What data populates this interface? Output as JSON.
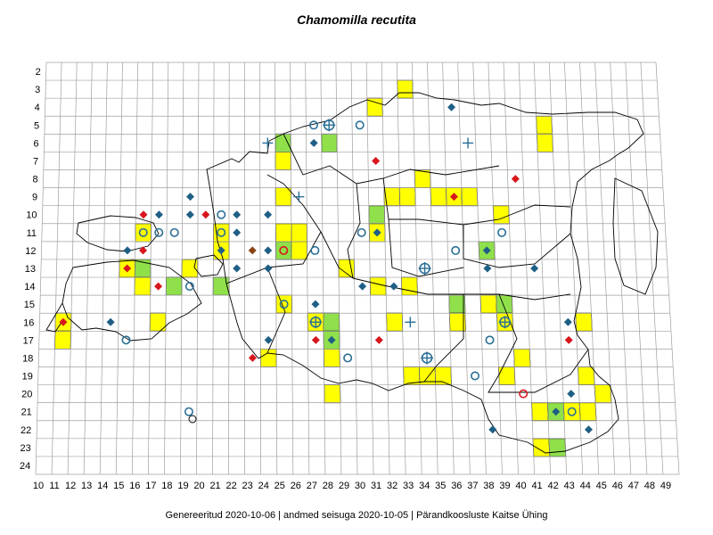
{
  "title": "Chamomilla recutita",
  "footer": {
    "generated": "Genereeritud 2020-10-06",
    "data_state": "andmed seisuga 2020-10-05",
    "organization": "Pärandkoosluste Kaitse Ühing",
    "separator": "|"
  },
  "grid": {
    "cols": [
      10,
      11,
      12,
      13,
      14,
      15,
      16,
      17,
      18,
      19,
      20,
      21,
      22,
      23,
      24,
      25,
      26,
      27,
      28,
      29,
      30,
      31,
      32,
      33,
      34,
      35,
      36,
      37,
      38,
      39,
      40,
      41,
      42,
      43,
      44,
      45,
      46,
      47,
      48,
      49
    ],
    "rows": [
      2,
      3,
      4,
      5,
      6,
      7,
      8,
      9,
      10,
      11,
      12,
      13,
      14,
      15,
      16,
      17,
      18,
      19,
      20,
      21,
      22,
      23,
      24
    ]
  },
  "colors": {
    "yellow_cell": "#ffff00",
    "green_cell": "#8fe04a",
    "diamond_blue": "#1f5f86",
    "diamond_red": "#d8161c",
    "diamond_brown": "#8b4513",
    "circle_blue": "#2a6f97",
    "circle_red": "#d8161c",
    "grid_line": "#a0a0a0",
    "outline": "#000000"
  },
  "cells": [
    {
      "c": 33,
      "r": 3,
      "fill": "yellow"
    },
    {
      "c": 31,
      "r": 4,
      "fill": "yellow"
    },
    {
      "c": 42,
      "r": 5,
      "fill": "yellow"
    },
    {
      "c": 42,
      "r": 6,
      "fill": "yellow"
    },
    {
      "c": 25,
      "r": 6,
      "fill": "green"
    },
    {
      "c": 28,
      "r": 6,
      "fill": "green"
    },
    {
      "c": 25,
      "r": 7,
      "fill": "yellow"
    },
    {
      "c": 34,
      "r": 8,
      "fill": "yellow"
    },
    {
      "c": 25,
      "r": 9,
      "fill": "yellow"
    },
    {
      "c": 32,
      "r": 9,
      "fill": "yellow"
    },
    {
      "c": 33,
      "r": 9,
      "fill": "yellow"
    },
    {
      "c": 35,
      "r": 9,
      "fill": "yellow"
    },
    {
      "c": 36,
      "r": 9,
      "fill": "yellow"
    },
    {
      "c": 37,
      "r": 9,
      "fill": "yellow"
    },
    {
      "c": 31,
      "r": 10,
      "fill": "green"
    },
    {
      "c": 39,
      "r": 10,
      "fill": "yellow"
    },
    {
      "c": 16,
      "r": 11,
      "fill": "yellow"
    },
    {
      "c": 21,
      "r": 11,
      "fill": "yellow"
    },
    {
      "c": 25,
      "r": 11,
      "fill": "yellow"
    },
    {
      "c": 26,
      "r": 11,
      "fill": "yellow"
    },
    {
      "c": 31,
      "r": 11,
      "fill": "yellow"
    },
    {
      "c": 21,
      "r": 12,
      "fill": "yellow"
    },
    {
      "c": 25,
      "r": 12,
      "fill": "green"
    },
    {
      "c": 26,
      "r": 12,
      "fill": "yellow"
    },
    {
      "c": 38,
      "r": 12,
      "fill": "green"
    },
    {
      "c": 15,
      "r": 13,
      "fill": "yellow"
    },
    {
      "c": 16,
      "r": 13,
      "fill": "green"
    },
    {
      "c": 19,
      "r": 13,
      "fill": "yellow"
    },
    {
      "c": 29,
      "r": 13,
      "fill": "yellow"
    },
    {
      "c": 16,
      "r": 14,
      "fill": "yellow"
    },
    {
      "c": 18,
      "r": 14,
      "fill": "green"
    },
    {
      "c": 21,
      "r": 14,
      "fill": "green"
    },
    {
      "c": 31,
      "r": 14,
      "fill": "yellow"
    },
    {
      "c": 33,
      "r": 14,
      "fill": "yellow"
    },
    {
      "c": 25,
      "r": 15,
      "fill": "yellow"
    },
    {
      "c": 36,
      "r": 15,
      "fill": "green"
    },
    {
      "c": 38,
      "r": 15,
      "fill": "yellow"
    },
    {
      "c": 39,
      "r": 15,
      "fill": "green"
    },
    {
      "c": 11,
      "r": 16,
      "fill": "yellow"
    },
    {
      "c": 17,
      "r": 16,
      "fill": "yellow"
    },
    {
      "c": 27,
      "r": 16,
      "fill": "yellow"
    },
    {
      "c": 28,
      "r": 16,
      "fill": "green"
    },
    {
      "c": 32,
      "r": 16,
      "fill": "yellow"
    },
    {
      "c": 36,
      "r": 16,
      "fill": "yellow"
    },
    {
      "c": 39,
      "r": 16,
      "fill": "yellow"
    },
    {
      "c": 44,
      "r": 16,
      "fill": "yellow"
    },
    {
      "c": 11,
      "r": 17,
      "fill": "yellow"
    },
    {
      "c": 28,
      "r": 17,
      "fill": "green"
    },
    {
      "c": 24,
      "r": 18,
      "fill": "yellow"
    },
    {
      "c": 28,
      "r": 18,
      "fill": "yellow"
    },
    {
      "c": 40,
      "r": 18,
      "fill": "yellow"
    },
    {
      "c": 33,
      "r": 19,
      "fill": "yellow"
    },
    {
      "c": 34,
      "r": 19,
      "fill": "yellow"
    },
    {
      "c": 35,
      "r": 19,
      "fill": "yellow"
    },
    {
      "c": 39,
      "r": 19,
      "fill": "yellow"
    },
    {
      "c": 44,
      "r": 19,
      "fill": "yellow"
    },
    {
      "c": 28,
      "r": 20,
      "fill": "yellow"
    },
    {
      "c": 45,
      "r": 20,
      "fill": "yellow"
    },
    {
      "c": 41,
      "r": 21,
      "fill": "yellow"
    },
    {
      "c": 42,
      "r": 21,
      "fill": "green"
    },
    {
      "c": 43,
      "r": 21,
      "fill": "yellow"
    },
    {
      "c": 44,
      "r": 21,
      "fill": "yellow"
    },
    {
      "c": 41,
      "r": 23,
      "fill": "yellow"
    },
    {
      "c": 42,
      "r": 23,
      "fill": "green"
    }
  ],
  "markers": [
    {
      "c": 36,
      "r": 4,
      "type": "diamond",
      "color": "blue"
    },
    {
      "c": 27,
      "r": 5,
      "type": "circle",
      "color": "blue"
    },
    {
      "c": 28,
      "r": 5,
      "type": "circle-plus",
      "color": "blue"
    },
    {
      "c": 30,
      "r": 5,
      "type": "circle",
      "color": "blue"
    },
    {
      "c": 24,
      "r": 6,
      "type": "plus",
      "color": "blue"
    },
    {
      "c": 27,
      "r": 6,
      "type": "diamond",
      "color": "blue"
    },
    {
      "c": 37,
      "r": 6,
      "type": "plus",
      "color": "blue"
    },
    {
      "c": 31,
      "r": 7,
      "type": "diamond",
      "color": "red"
    },
    {
      "c": 40,
      "r": 8,
      "type": "diamond",
      "color": "red"
    },
    {
      "c": 26,
      "r": 9,
      "type": "plus",
      "color": "blue"
    },
    {
      "c": 19,
      "r": 9,
      "type": "diamond",
      "color": "blue"
    },
    {
      "c": 36,
      "r": 9,
      "type": "diamond",
      "color": "red"
    },
    {
      "c": 16,
      "r": 10,
      "type": "diamond",
      "color": "red"
    },
    {
      "c": 17,
      "r": 10,
      "type": "diamond",
      "color": "blue"
    },
    {
      "c": 19,
      "r": 10,
      "type": "diamond",
      "color": "blue"
    },
    {
      "c": 20,
      "r": 10,
      "type": "diamond",
      "color": "red"
    },
    {
      "c": 21,
      "r": 10,
      "type": "circle",
      "color": "blue"
    },
    {
      "c": 22,
      "r": 10,
      "type": "diamond",
      "color": "blue"
    },
    {
      "c": 24,
      "r": 10,
      "type": "diamond",
      "color": "blue"
    },
    {
      "c": 16,
      "r": 11,
      "type": "circle",
      "color": "blue"
    },
    {
      "c": 17,
      "r": 11,
      "type": "circle",
      "color": "blue"
    },
    {
      "c": 18,
      "r": 11,
      "type": "circle",
      "color": "blue"
    },
    {
      "c": 21,
      "r": 11,
      "type": "circle",
      "color": "blue"
    },
    {
      "c": 22,
      "r": 11,
      "type": "diamond",
      "color": "blue"
    },
    {
      "c": 30,
      "r": 11,
      "type": "circle",
      "color": "blue"
    },
    {
      "c": 31,
      "r": 11,
      "type": "diamond",
      "color": "blue"
    },
    {
      "c": 39,
      "r": 11,
      "type": "circle",
      "color": "blue"
    },
    {
      "c": 15,
      "r": 12,
      "type": "diamond",
      "color": "blue"
    },
    {
      "c": 16,
      "r": 12,
      "type": "diamond",
      "color": "red"
    },
    {
      "c": 21,
      "r": 12,
      "type": "diamond",
      "color": "blue"
    },
    {
      "c": 23,
      "r": 12,
      "type": "diamond",
      "color": "brown"
    },
    {
      "c": 24,
      "r": 12,
      "type": "diamond",
      "color": "blue"
    },
    {
      "c": 25,
      "r": 12,
      "type": "circle",
      "color": "red"
    },
    {
      "c": 27,
      "r": 12,
      "type": "circle",
      "color": "blue"
    },
    {
      "c": 36,
      "r": 12,
      "type": "circle",
      "color": "blue"
    },
    {
      "c": 38,
      "r": 12,
      "type": "diamond",
      "color": "blue"
    },
    {
      "c": 15,
      "r": 13,
      "type": "diamond",
      "color": "red"
    },
    {
      "c": 22,
      "r": 13,
      "type": "diamond",
      "color": "blue"
    },
    {
      "c": 24,
      "r": 13,
      "type": "diamond",
      "color": "blue"
    },
    {
      "c": 34,
      "r": 13,
      "type": "circle-plus",
      "color": "blue"
    },
    {
      "c": 38,
      "r": 13,
      "type": "diamond",
      "color": "blue"
    },
    {
      "c": 41,
      "r": 13,
      "type": "diamond",
      "color": "blue"
    },
    {
      "c": 17,
      "r": 14,
      "type": "diamond",
      "color": "red"
    },
    {
      "c": 19,
      "r": 14,
      "type": "circle",
      "color": "blue"
    },
    {
      "c": 30,
      "r": 14,
      "type": "diamond",
      "color": "blue"
    },
    {
      "c": 32,
      "r": 14,
      "type": "diamond",
      "color": "blue"
    },
    {
      "c": 25,
      "r": 15,
      "type": "circle",
      "color": "blue"
    },
    {
      "c": 27,
      "r": 15,
      "type": "diamond",
      "color": "blue"
    },
    {
      "c": 11,
      "r": 16,
      "type": "diamond",
      "color": "red"
    },
    {
      "c": 14,
      "r": 16,
      "type": "diamond",
      "color": "blue"
    },
    {
      "c": 27,
      "r": 16,
      "type": "circle-plus",
      "color": "blue"
    },
    {
      "c": 33,
      "r": 16,
      "type": "plus",
      "color": "blue"
    },
    {
      "c": 39,
      "r": 16,
      "type": "circle-plus",
      "color": "blue"
    },
    {
      "c": 43,
      "r": 16,
      "type": "diamond",
      "color": "blue"
    },
    {
      "c": 15,
      "r": 17,
      "type": "circle",
      "color": "blue"
    },
    {
      "c": 24,
      "r": 17,
      "type": "diamond",
      "color": "blue"
    },
    {
      "c": 27,
      "r": 17,
      "type": "diamond",
      "color": "red"
    },
    {
      "c": 28,
      "r": 17,
      "type": "diamond",
      "color": "blue"
    },
    {
      "c": 31,
      "r": 17,
      "type": "diamond",
      "color": "red"
    },
    {
      "c": 38,
      "r": 17,
      "type": "circle",
      "color": "blue"
    },
    {
      "c": 43,
      "r": 17,
      "type": "diamond",
      "color": "red"
    },
    {
      "c": 23,
      "r": 18,
      "type": "diamond",
      "color": "red"
    },
    {
      "c": 29,
      "r": 18,
      "type": "circle",
      "color": "blue"
    },
    {
      "c": 34,
      "r": 18,
      "type": "circle-plus",
      "color": "blue"
    },
    {
      "c": 37,
      "r": 19,
      "type": "circle",
      "color": "blue"
    },
    {
      "c": 40,
      "r": 20,
      "type": "circle",
      "color": "red"
    },
    {
      "c": 43,
      "r": 20,
      "type": "diamond",
      "color": "blue"
    },
    {
      "c": 42,
      "r": 21,
      "type": "diamond",
      "color": "blue"
    },
    {
      "c": 43,
      "r": 21,
      "type": "circle",
      "color": "blue"
    },
    {
      "c": 19,
      "r": 21,
      "type": "circle",
      "color": "blue"
    },
    {
      "c": 38,
      "r": 22,
      "type": "diamond",
      "color": "blue"
    },
    {
      "c": 44,
      "r": 22,
      "type": "diamond",
      "color": "blue"
    }
  ]
}
